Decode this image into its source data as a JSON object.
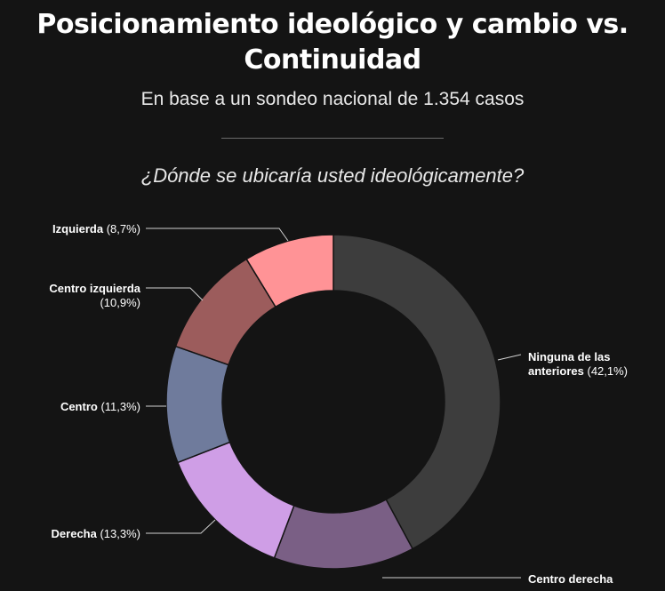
{
  "header": {
    "title_line1": "Posicionamiento ideológico y cambio vs.",
    "title_line2": "Continuidad",
    "subtitle": "En base a un sondeo nacional de 1.354 casos"
  },
  "chart_data": {
    "type": "pie",
    "title": "¿Dónde se ubicaría usted ideológicamente?",
    "donut": true,
    "slices": [
      {
        "label": "Ninguna de las anteriores",
        "value": 42.1,
        "value_label": "(42,1%)",
        "color": "#3d3d3d"
      },
      {
        "label": "Centro derecha",
        "value": 13.6,
        "value_label": "",
        "color": "#7a5f85"
      },
      {
        "label": "Derecha",
        "value": 13.3,
        "value_label": "(13,3%)",
        "color": "#cf9ee6"
      },
      {
        "label": "Centro",
        "value": 11.3,
        "value_label": "(11,3%)",
        "color": "#6f7b9c"
      },
      {
        "label": "Centro izquierda",
        "value": 10.9,
        "value_label": "(10,9%)",
        "color": "#9c5c5c"
      },
      {
        "label": "Izquierda",
        "value": 8.7,
        "value_label": "(8,7%)",
        "color": "#ff9396"
      }
    ]
  }
}
